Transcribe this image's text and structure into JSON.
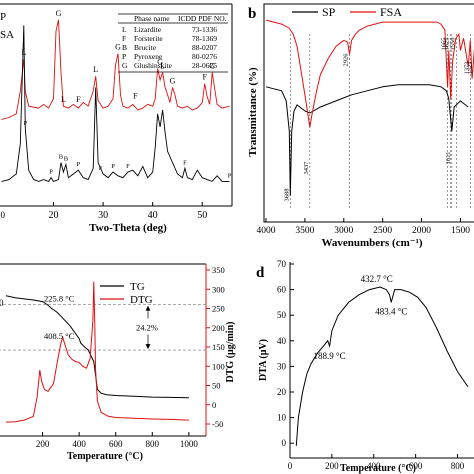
{
  "colors": {
    "black": "#000000",
    "red": "#e01010",
    "grid": "#9a9a9a"
  },
  "chart_data": [
    {
      "panel": "a",
      "type": "line",
      "title": "",
      "xlabel": "Two-Theta (deg)",
      "ylabel": "",
      "xlim": [
        8.8,
        56.0
      ],
      "ylim": [
        0,
        100
      ],
      "xticks": [
        20,
        30,
        40,
        50
      ],
      "legend": {
        "visible_text": [
          "P",
          "SA"
        ],
        "placement": "top-left"
      },
      "table": {
        "headers": [
          "",
          "Phase name",
          "ICDD PDF NO."
        ],
        "rows": [
          [
            "L",
            "Lizardite",
            "73-1336"
          ],
          [
            "F",
            "Forsterite",
            "78-1369"
          ],
          [
            "B",
            "Brucite",
            "88-0207"
          ],
          [
            "P",
            "Pyroxene",
            "80-0276"
          ],
          [
            "G",
            "Glushinskite",
            "28-0625"
          ]
        ]
      },
      "series": [
        {
          "color": "#e01010",
          "x": [
            9.5,
            11,
            12.5,
            13.3,
            14,
            14.3,
            15,
            17,
            18,
            19,
            20,
            20.5,
            21,
            21.5,
            22,
            23,
            24,
            25,
            26,
            27,
            28,
            28.5,
            29,
            30,
            31,
            32,
            32.5,
            33,
            33.5,
            34,
            35,
            36,
            37,
            38,
            39,
            40,
            40.5,
            41,
            41.5,
            42,
            42.5,
            43,
            43.5,
            44,
            44.5,
            45,
            46,
            47,
            48,
            49,
            50,
            50.5,
            51,
            51.5,
            52,
            53,
            54,
            55.5
          ],
          "y": [
            45,
            46,
            48,
            60,
            77,
            60,
            52,
            51,
            53,
            51,
            56,
            92,
            98,
            70,
            52,
            51,
            53,
            51,
            54,
            52,
            60,
            68,
            55,
            51,
            52,
            56,
            74,
            80,
            58,
            52,
            51,
            53,
            50,
            51,
            53,
            52,
            56,
            72,
            66,
            70,
            62,
            58,
            54,
            62,
            58,
            52,
            51,
            52,
            50,
            51,
            54,
            64,
            57,
            53,
            70,
            53,
            51,
            52
          ]
        },
        {
          "color": "#000000",
          "x": [
            9.5,
            11,
            12.5,
            13.3,
            14,
            14.3,
            15,
            16,
            17,
            18,
            19,
            19.5,
            20,
            21,
            21.5,
            22,
            22.5,
            23,
            24,
            25,
            26,
            27,
            28,
            28.5,
            29,
            30,
            31,
            32,
            33,
            34,
            35,
            36,
            37,
            38,
            39,
            40,
            40.5,
            41,
            41.5,
            42,
            42.5,
            43,
            44,
            45,
            46,
            46.5,
            47,
            48,
            49,
            50,
            51,
            52,
            53,
            54,
            55.5
          ],
          "y": [
            12,
            13,
            16,
            32,
            95,
            40,
            18,
            13,
            12,
            13,
            12,
            14,
            12,
            13,
            22,
            17,
            21,
            14,
            16,
            18,
            14,
            13,
            19,
            62,
            22,
            16,
            14,
            17,
            15,
            14,
            17,
            18,
            15,
            20,
            14,
            17,
            30,
            48,
            41,
            50,
            38,
            28,
            22,
            16,
            14,
            19,
            14,
            13,
            18,
            14,
            13,
            12,
            15,
            12,
            12
          ]
        }
      ],
      "annotations": [
        {
          "text": "G",
          "x": 21,
          "y": 98
        },
        {
          "text": "G",
          "x": 33,
          "y": 80
        },
        {
          "text": "G",
          "x": 52,
          "y": 70
        },
        {
          "text": "G",
          "x": 41.5,
          "y": 72
        },
        {
          "text": "G",
          "x": 44,
          "y": 62
        },
        {
          "text": "L",
          "x": 14,
          "y": 77
        },
        {
          "text": "L",
          "x": 22,
          "y": 52
        },
        {
          "text": "L",
          "x": 28.5,
          "y": 68
        },
        {
          "text": "L",
          "x": 42,
          "y": 70
        },
        {
          "text": "F",
          "x": 25,
          "y": 52
        },
        {
          "text": "F",
          "x": 36.5,
          "y": 54
        },
        {
          "text": "F",
          "x": 50.5,
          "y": 64
        },
        {
          "text": "B",
          "x": 21.5,
          "y": 22
        },
        {
          "text": "B",
          "x": 22.5,
          "y": 21
        },
        {
          "text": "P",
          "x": 14.3,
          "y": 40
        },
        {
          "text": "P",
          "x": 19.5,
          "y": 14
        },
        {
          "text": "P",
          "x": 25,
          "y": 18
        },
        {
          "text": "P",
          "x": 32,
          "y": 17
        },
        {
          "text": "P",
          "x": 55.5,
          "y": 12
        },
        {
          "text": "F",
          "x": 29.5,
          "y": 16
        },
        {
          "text": "F",
          "x": 35,
          "y": 17
        },
        {
          "text": "F",
          "x": 46.5,
          "y": 19
        }
      ]
    },
    {
      "panel": "b",
      "type": "line",
      "title": "",
      "xlabel": "Wavenumbers (cm⁻¹)",
      "ylabel": "Transmittance (%)",
      "xlim": [
        4000,
        500
      ],
      "ylim": [
        0,
        100
      ],
      "xticks": [
        4000,
        3500,
        3000,
        2500,
        2000,
        1500,
        1000
      ],
      "xtick_labels": [
        "4000",
        "3500",
        "3000",
        "2500",
        "2000",
        "1500",
        "1000"
      ],
      "legend": {
        "entries": [
          {
            "text": "SP",
            "color": "#000000"
          },
          {
            "text": "FSA",
            "color": "#e01010"
          }
        ],
        "placement": "top"
      },
      "series": [
        {
          "name": "SP",
          "color": "#000000",
          "x": [
            4000,
            3900,
            3800,
            3740,
            3700,
            3688,
            3670,
            3640,
            3600,
            3500,
            3437,
            3300,
            3100,
            2900,
            2700,
            2500,
            2300,
            2100,
            1900,
            1750,
            1680,
            1650,
            1611,
            1580,
            1500,
            1400,
            1200,
            1000
          ],
          "y": [
            62,
            61,
            60,
            55,
            40,
            8,
            40,
            50,
            53,
            50,
            49,
            52,
            55,
            58,
            60,
            62,
            63,
            63,
            63,
            62,
            60,
            56,
            40,
            52,
            55,
            52,
            48,
            44
          ]
        },
        {
          "name": "FSA",
          "color": "#e01010",
          "x": [
            4000,
            3900,
            3800,
            3700,
            3650,
            3600,
            3550,
            3500,
            3460,
            3437,
            3410,
            3350,
            3300,
            3200,
            3100,
            3000,
            2950,
            2926,
            2900,
            2850,
            2800,
            2700,
            2600,
            2500,
            2400,
            2300,
            2200,
            2100,
            2000,
            1900,
            1800,
            1750,
            1700,
            1665,
            1650,
            1625,
            1600,
            1560,
            1520,
            1500,
            1460,
            1400,
            1373,
            1350,
            1318,
            1300,
            1250,
            1200,
            1100,
            1000
          ],
          "y": [
            95,
            94,
            93,
            91,
            88,
            82,
            70,
            58,
            48,
            42,
            48,
            60,
            68,
            76,
            82,
            85,
            84,
            78,
            85,
            88,
            90,
            92,
            93,
            94,
            94,
            94,
            94,
            94,
            94,
            94,
            94,
            93,
            90,
            62,
            80,
            56,
            75,
            86,
            88,
            80,
            86,
            72,
            85,
            66,
            82,
            62,
            82,
            70,
            78,
            75
          ]
        }
      ],
      "annotations": [
        {
          "text": "3688",
          "x": 3688
        },
        {
          "text": "3437",
          "x": 3437
        },
        {
          "text": "2926",
          "x": 2926
        },
        {
          "text": "1611",
          "x": 1611
        },
        {
          "text": "1665",
          "x": 1665
        },
        {
          "text": "1625",
          "x": 1625
        },
        {
          "text": "1550",
          "x": 1550
        },
        {
          "text": "1373",
          "x": 1373
        },
        {
          "text": "1323",
          "x": 1323
        },
        {
          "text": "1300",
          "x": 1300
        }
      ]
    },
    {
      "panel": "c",
      "type": "line",
      "title": "",
      "xlabel": "Temperature (°C)",
      "ylabel_right": "DTG (μg/min)",
      "xlim": [
        0,
        1050
      ],
      "y2lim": [
        -50,
        350
      ],
      "xticks": [
        200,
        400,
        600,
        800,
        1000
      ],
      "y2ticks": [
        -50,
        0,
        50,
        100,
        150,
        200,
        250,
        300,
        350
      ],
      "legend": {
        "entries": [
          {
            "text": "TG",
            "color": "#000000"
          },
          {
            "text": "DTG",
            "color": "#e01010"
          }
        ],
        "placement": "top-right"
      },
      "reference_lines": [
        {
          "y2": 260
        },
        {
          "y2": 142
        }
      ],
      "labels": [
        {
          "text": "225.8 °C"
        },
        {
          "text": "408.5 °C"
        },
        {
          "text": "24.2%"
        }
      ],
      "series": [
        {
          "name": "TG",
          "color": "#000000",
          "x": [
            0,
            50,
            100,
            150,
            200,
            225.8,
            250,
            280,
            300,
            350,
            400,
            408.5,
            430,
            450,
            480,
            500,
            520,
            550,
            600,
            700,
            800,
            900,
            1000
          ],
          "y2": [
            283,
            278,
            275,
            272,
            268,
            260,
            250,
            240,
            230,
            205,
            172,
            160,
            150,
            142,
            112,
            40,
            30,
            26,
            24,
            22,
            20,
            19,
            18
          ]
        },
        {
          "name": "DTG",
          "color": "#e01010",
          "x": [
            0,
            50,
            100,
            150,
            170,
            185,
            195,
            210,
            230,
            260,
            280,
            300,
            310,
            320,
            340,
            360,
            380,
            400,
            420,
            440,
            460,
            475,
            480,
            485,
            490,
            500,
            520,
            560,
            600,
            700,
            800,
            900,
            1000
          ],
          "y2": [
            -45,
            -44,
            -40,
            -30,
            20,
            90,
            60,
            40,
            35,
            55,
            110,
            160,
            175,
            160,
            130,
            118,
            112,
            110,
            100,
            95,
            120,
            220,
            320,
            220,
            90,
            10,
            -20,
            -30,
            -33,
            -35,
            -37,
            -38,
            -40
          ]
        }
      ]
    },
    {
      "panel": "d",
      "type": "line",
      "title": "",
      "xlabel": "Temperature (°C)",
      "ylabel": "DTA (μV)",
      "xlim": [
        0,
        850
      ],
      "ylim": [
        -5,
        70
      ],
      "xticks": [
        0,
        200,
        400,
        600,
        800
      ],
      "yticks": [
        0,
        10,
        20,
        30,
        40,
        50,
        60,
        70
      ],
      "labels": [
        {
          "text": "432.7 °C",
          "x": 432.7,
          "y": 61
        },
        {
          "text": "483.4 °C",
          "x": 483.4,
          "y": 55
        },
        {
          "text": "188.9 °C",
          "x": 188.9,
          "y": 38
        }
      ],
      "series": [
        {
          "color": "#000000",
          "x": [
            30,
            40,
            60,
            80,
            100,
            130,
            160,
            180,
            188.9,
            200,
            230,
            280,
            330,
            380,
            430,
            460,
            475,
            483.4,
            490,
            500,
            530,
            570,
            610,
            650,
            700,
            750,
            800,
            850
          ],
          "y": [
            -1,
            10,
            20,
            27,
            31,
            35,
            38,
            40,
            38,
            44,
            50,
            55,
            58,
            60,
            61,
            60,
            58,
            55,
            57,
            60,
            60,
            59,
            57,
            53,
            45,
            36,
            28,
            22
          ]
        }
      ]
    }
  ],
  "panel_letters": {
    "b": "b",
    "d": "d"
  },
  "c_left_partial": {
    "tick": "100"
  },
  "a_left_partial": {
    "tick": "10"
  },
  "d_left_partial": {
    "tick": "0"
  }
}
